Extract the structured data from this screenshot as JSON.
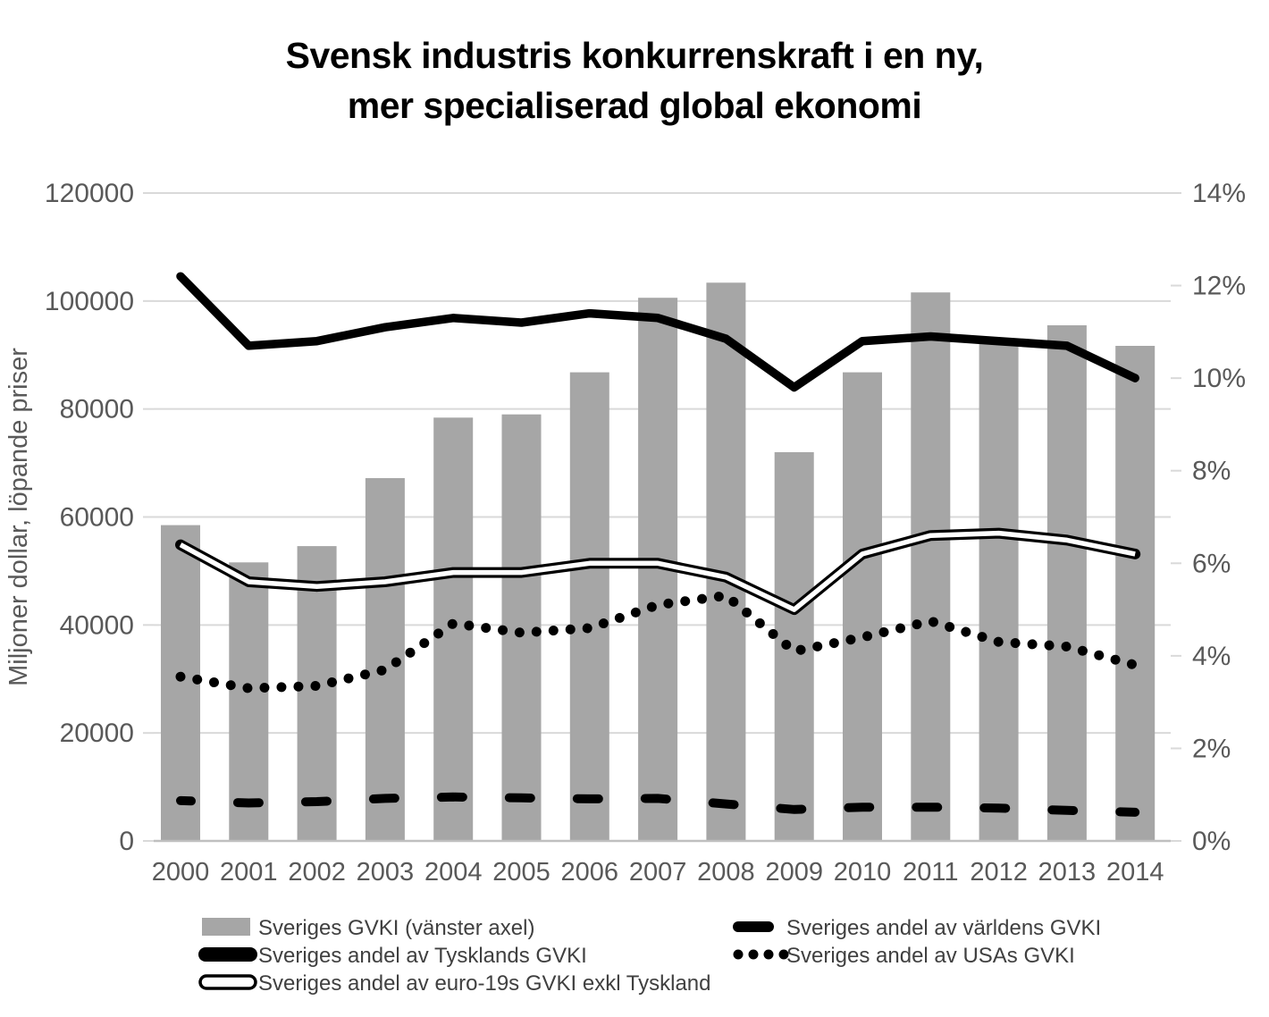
{
  "chart_data": {
    "type": "bar",
    "combo": "bar+line",
    "title_line1": "Svensk industris konkurrenskraft i en ny,",
    "title_line2": "mer specialiserad global ekonomi",
    "ylabel_left": "Miljoner dollar, löpande priser",
    "categories": [
      "2000",
      "2001",
      "2002",
      "2003",
      "2004",
      "2005",
      "2006",
      "2007",
      "2008",
      "2009",
      "2010",
      "2011",
      "2012",
      "2013",
      "2014"
    ],
    "left_axis": {
      "min": 0,
      "max": 120000,
      "tick_step": 20000,
      "tick_labels": [
        "0",
        "20000",
        "40000",
        "60000",
        "80000",
        "100000",
        "120000"
      ]
    },
    "right_axis": {
      "min": 0,
      "max": 14,
      "tick_step": 2,
      "tick_labels": [
        "0%",
        "2%",
        "4%",
        "6%",
        "8%",
        "10%",
        "12%",
        "14%"
      ]
    },
    "grid": "horizontal-on",
    "legend_position": "bottom",
    "series": [
      {
        "name": "Sveriges GVKI (vänster axel)",
        "type": "bar",
        "axis": "left",
        "color": "#a6a6a6",
        "values": [
          58500,
          51600,
          54600,
          67200,
          78400,
          79000,
          86800,
          100600,
          103400,
          72000,
          86800,
          101600,
          92300,
          95500,
          91700
        ]
      },
      {
        "name": "Sveriges andel av Tysklands GVKI",
        "type": "line",
        "style": "solid-thick",
        "axis": "right",
        "color": "#000000",
        "values": [
          12.2,
          10.7,
          10.8,
          11.1,
          11.3,
          11.2,
          11.4,
          11.3,
          10.85,
          9.8,
          10.8,
          10.9,
          10.8,
          10.7,
          10.0
        ]
      },
      {
        "name": "Sveriges andel av euro-19s GVKI exkl Tyskland",
        "type": "line",
        "style": "double-outline",
        "axis": "right",
        "color": "#000000",
        "values": [
          6.4,
          5.6,
          5.5,
          5.6,
          5.8,
          5.8,
          6.0,
          6.0,
          5.7,
          5.0,
          6.2,
          6.6,
          6.65,
          6.5,
          6.2
        ]
      },
      {
        "name": "Sveriges andel av världens GVKI",
        "type": "line",
        "style": "dashed",
        "axis": "right",
        "color": "#000000",
        "values": [
          0.87,
          0.82,
          0.85,
          0.92,
          0.95,
          0.93,
          0.91,
          0.92,
          0.8,
          0.68,
          0.73,
          0.73,
          0.71,
          0.66,
          0.62
        ]
      },
      {
        "name": "Sveriges andel av USAs GVKI",
        "type": "line",
        "style": "dotted",
        "axis": "right",
        "color": "#000000",
        "values": [
          3.55,
          3.3,
          3.35,
          3.7,
          4.7,
          4.5,
          4.6,
          5.1,
          5.3,
          4.1,
          4.4,
          4.75,
          4.3,
          4.2,
          3.8
        ]
      }
    ],
    "legend_columns": [
      {
        "series_indexes": [
          0,
          1,
          2
        ]
      },
      {
        "series_indexes": [
          3,
          4
        ]
      }
    ],
    "colors": {
      "bar_fill": "#a6a6a6",
      "gridline": "#d9d9d9",
      "axis_line": "#bfbfbf",
      "axis_text": "#595959",
      "legend_text": "#404040",
      "line_black": "#000000",
      "background": "#ffffff"
    }
  }
}
